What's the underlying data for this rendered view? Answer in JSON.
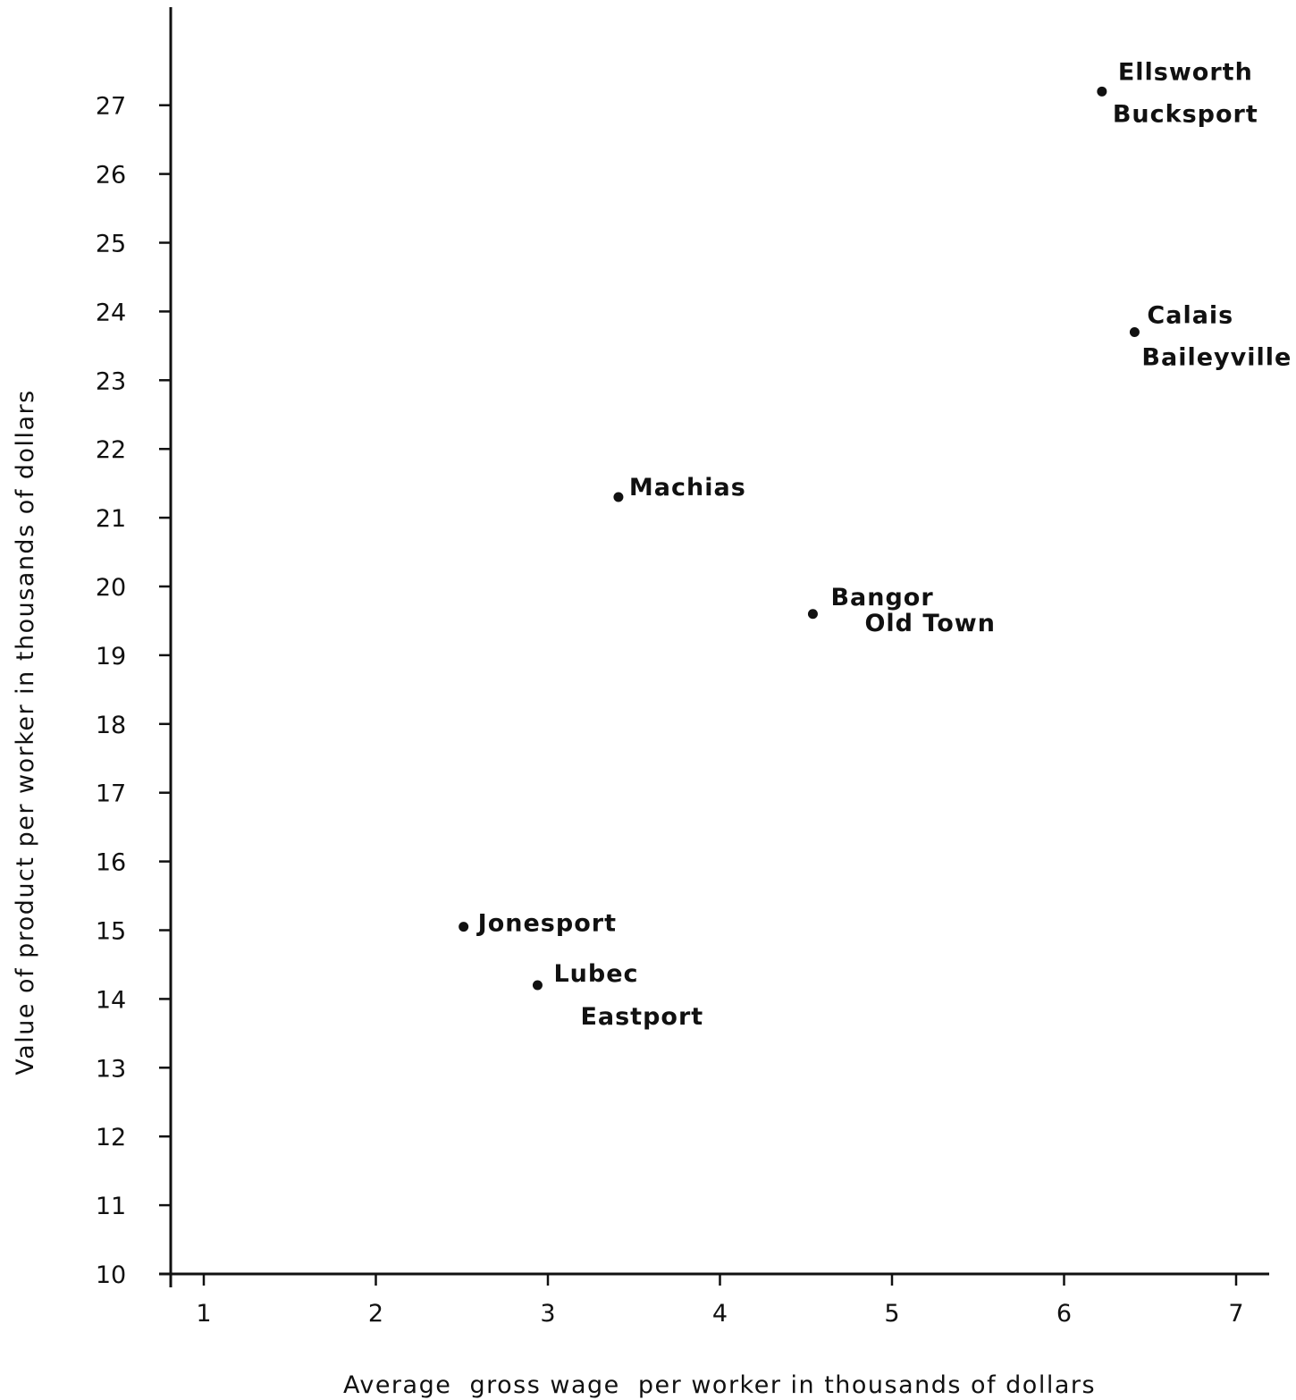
{
  "chart_data": {
    "type": "scatter",
    "title": "",
    "xlabel": "Average  gross wage  per worker in thousands of dollars",
    "ylabel": "Value of product per worker in thousands of dollars",
    "xlim": [
      0.8,
      7.2
    ],
    "ylim": [
      10,
      28.5
    ],
    "xticks": [
      1,
      2,
      3,
      4,
      5,
      6,
      7
    ],
    "yticks": [
      10,
      11,
      12,
      13,
      14,
      15,
      16,
      17,
      18,
      19,
      20,
      21,
      22,
      23,
      24,
      25,
      26,
      27
    ],
    "grid": false,
    "legend": "none",
    "points": [
      {
        "x": 6.22,
        "y": 27.2,
        "labels": [
          "Ellsworth",
          "Bucksport"
        ]
      },
      {
        "x": 6.41,
        "y": 23.7,
        "labels": [
          "Calais",
          "Baileyville"
        ]
      },
      {
        "x": 3.41,
        "y": 21.3,
        "labels": [
          "Machias"
        ]
      },
      {
        "x": 4.54,
        "y": 19.6,
        "labels": [
          "Bangor",
          "Old Town"
        ]
      },
      {
        "x": 2.51,
        "y": 15.05,
        "labels": [
          "Jonesport"
        ]
      },
      {
        "x": 2.94,
        "y": 14.2,
        "labels": [
          "Lubec",
          "Eastport"
        ]
      }
    ]
  }
}
